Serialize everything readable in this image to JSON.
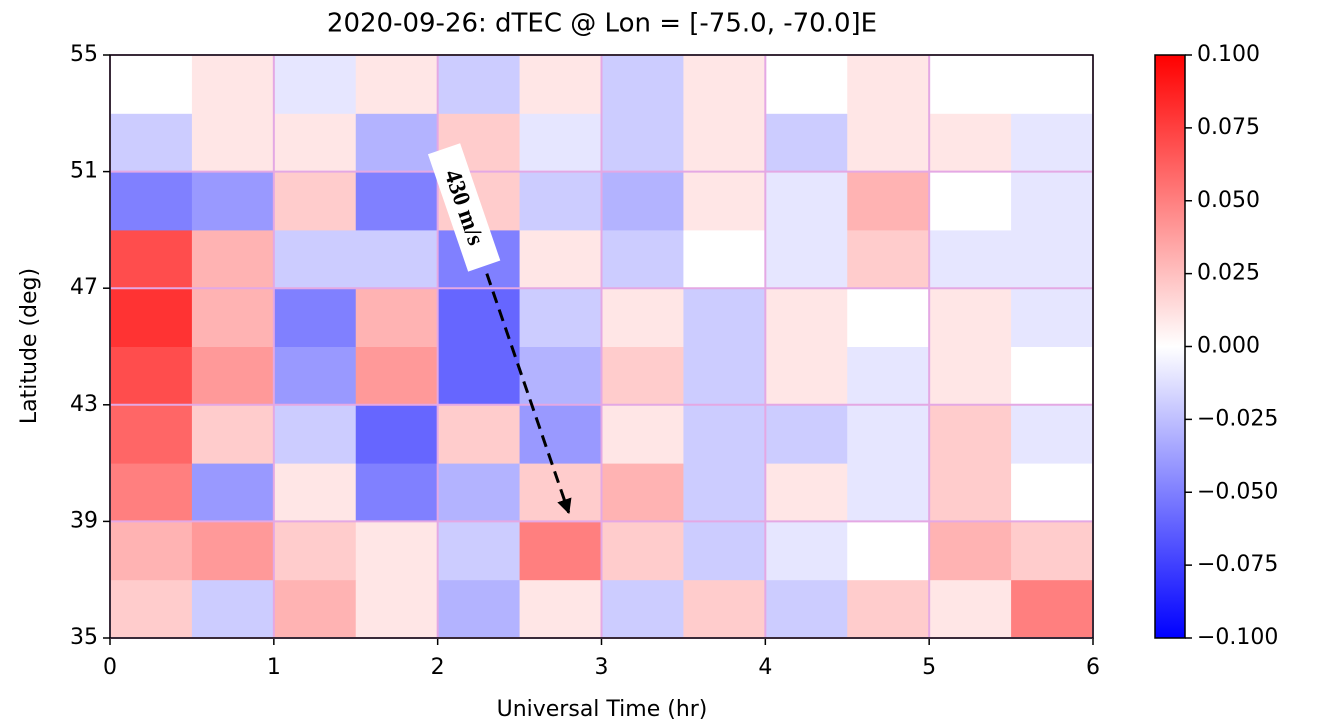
{
  "chart_data": {
    "type": "heatmap",
    "title": "2020-09-26: dTEC @   Lon = [-75.0, -70.0]E",
    "x_label": "Universal Time (hr)",
    "y_label": "Latitude (deg)",
    "x_bins": [
      0,
      0.5,
      1,
      1.5,
      2,
      2.5,
      3,
      3.5,
      4,
      4.5,
      5,
      5.5,
      6
    ],
    "y_bins": [
      35,
      37,
      39,
      41,
      43,
      45,
      47,
      49,
      51,
      53,
      55
    ],
    "z": [
      [
        0.02,
        -0.02,
        0.03,
        0.01,
        -0.03,
        0.01,
        -0.02,
        0.02,
        -0.02,
        0.02,
        0.01,
        0.05
      ],
      [
        0.03,
        0.04,
        0.02,
        0.01,
        -0.02,
        0.05,
        0.02,
        -0.02,
        -0.01,
        0,
        0.03,
        0.02
      ],
      [
        0.05,
        -0.04,
        0.01,
        -0.05,
        -0.03,
        0.02,
        0.03,
        -0.02,
        0.01,
        -0.01,
        0.02,
        0
      ],
      [
        0.06,
        0.02,
        -0.02,
        -0.06,
        0.02,
        -0.04,
        0.01,
        -0.02,
        -0.02,
        -0.01,
        0.02,
        -0.01
      ],
      [
        0.07,
        0.04,
        -0.04,
        0.04,
        -0.06,
        -0.03,
        0.02,
        -0.02,
        0.01,
        -0.01,
        0.01,
        0
      ],
      [
        0.08,
        0.03,
        -0.05,
        0.03,
        -0.06,
        -0.02,
        0.01,
        -0.02,
        0.01,
        0,
        0.01,
        -0.01
      ],
      [
        0.07,
        0.03,
        -0.02,
        -0.02,
        -0.05,
        0.01,
        -0.02,
        0,
        -0.01,
        0.02,
        -0.01,
        -0.01
      ],
      [
        -0.05,
        -0.04,
        0.02,
        -0.05,
        0.02,
        -0.02,
        -0.03,
        0.01,
        -0.01,
        0.03,
        0,
        -0.01
      ],
      [
        -0.02,
        0.01,
        0.01,
        -0.03,
        0.02,
        -0.01,
        -0.02,
        0.01,
        -0.02,
        0.01,
        0.01,
        -0.01
      ],
      [
        0,
        0.01,
        -0.01,
        0.01,
        -0.02,
        0.01,
        -0.02,
        0.01,
        0,
        0.01,
        0,
        0
      ]
    ],
    "colormap": [
      "#0000ff",
      "#ffffff",
      "#ff0000"
    ],
    "clim": [
      -0.1,
      0.1
    ],
    "cticks": [
      {
        "value": -0.1,
        "label": "−0.100"
      },
      {
        "value": -0.075,
        "label": "−0.075"
      },
      {
        "value": -0.05,
        "label": "−0.050"
      },
      {
        "value": -0.025,
        "label": "−0.025"
      },
      {
        "value": 0,
        "label": "0.000"
      },
      {
        "value": 0.025,
        "label": "0.025"
      },
      {
        "value": 0.05,
        "label": "0.050"
      },
      {
        "value": 0.075,
        "label": "0.075"
      },
      {
        "value": 0.1,
        "label": "0.100"
      }
    ],
    "xlim": [
      0,
      6
    ],
    "xticks": [
      0,
      1,
      2,
      3,
      4,
      5,
      6
    ],
    "ylim": [
      35,
      55
    ],
    "yticks": [
      35,
      39,
      43,
      47,
      51,
      55
    ],
    "grid": true,
    "grid_color": "#e4a8e4",
    "annotation": {
      "text": "430 m/s",
      "x": [
        2.3,
        2.8
      ],
      "y": [
        47.5,
        39.3
      ]
    }
  }
}
